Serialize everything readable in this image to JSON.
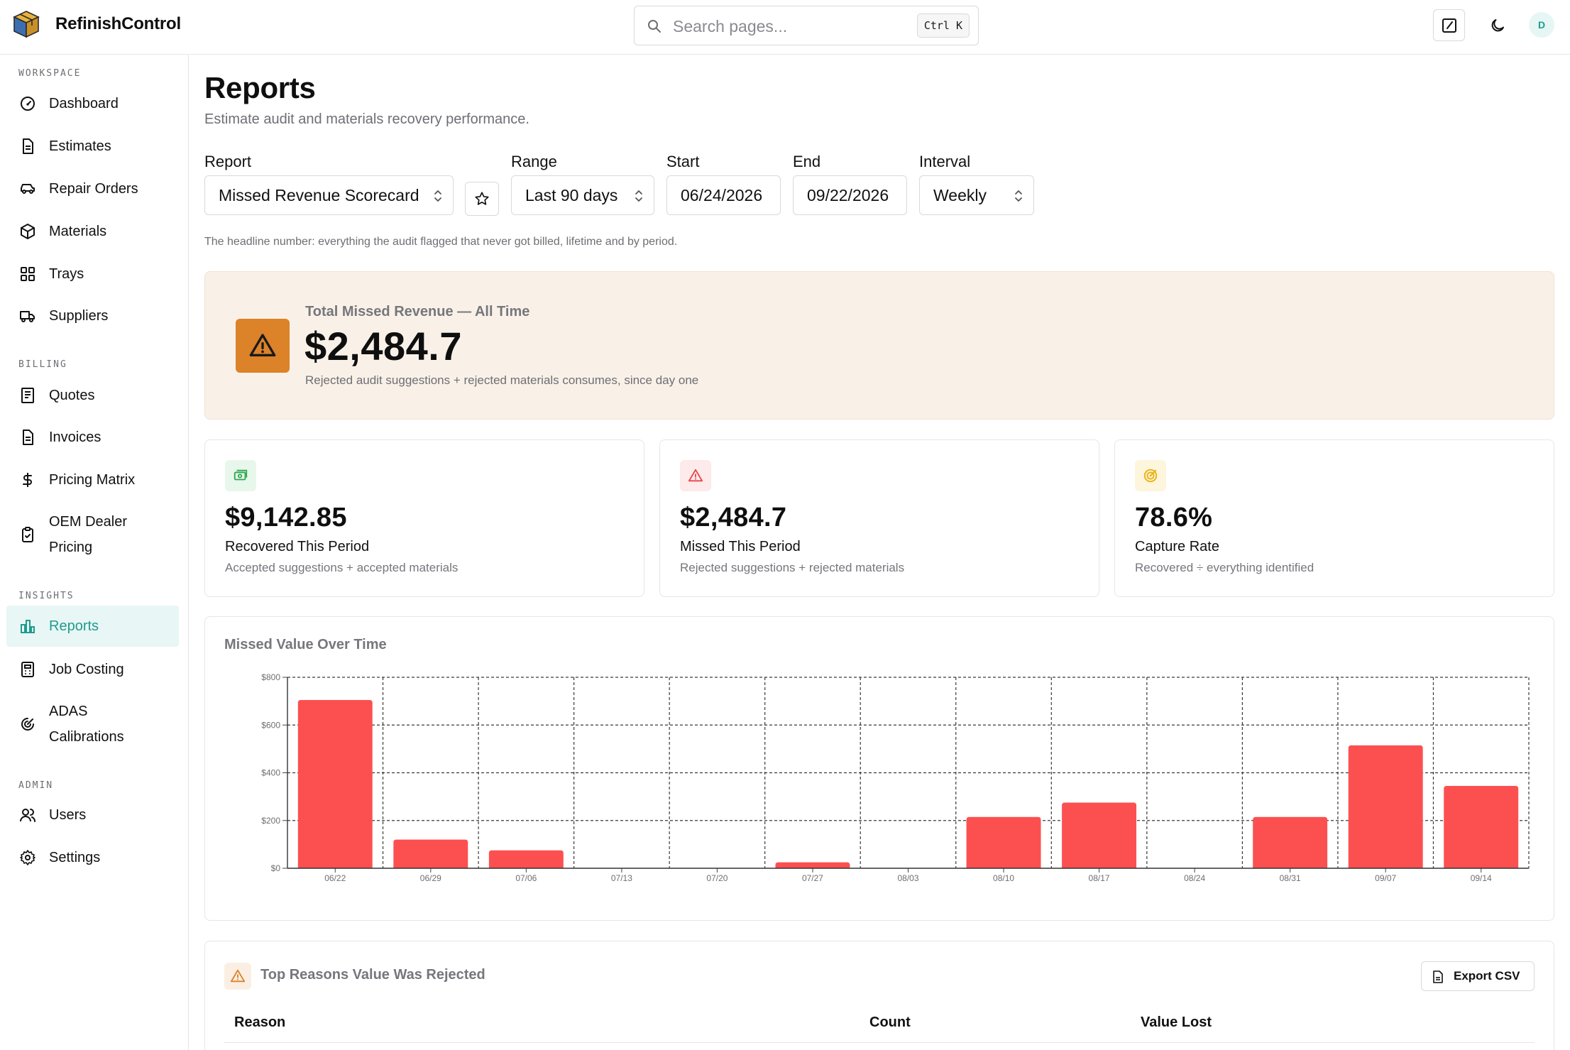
{
  "app": {
    "name": "RefinishControl",
    "user_initial": "D"
  },
  "search": {
    "placeholder": "Search pages...",
    "shortcut": "Ctrl K"
  },
  "sidebar": {
    "sections": [
      {
        "label": "WORKSPACE",
        "items": [
          {
            "label": "Dashboard",
            "icon": "gauge-icon"
          },
          {
            "label": "Estimates",
            "icon": "document-icon"
          },
          {
            "label": "Repair Orders",
            "icon": "car-icon"
          },
          {
            "label": "Materials",
            "icon": "package-icon"
          },
          {
            "label": "Trays",
            "icon": "grid-icon"
          },
          {
            "label": "Suppliers",
            "icon": "truck-icon"
          }
        ]
      },
      {
        "label": "BILLING",
        "items": [
          {
            "label": "Quotes",
            "icon": "receipt-icon"
          },
          {
            "label": "Invoices",
            "icon": "document-icon"
          },
          {
            "label": "Pricing Matrix",
            "icon": "dollar-icon"
          },
          {
            "label": "OEM Dealer Pricing",
            "icon": "clipboard-check-icon"
          }
        ]
      },
      {
        "label": "INSIGHTS",
        "items": [
          {
            "label": "Reports",
            "icon": "bar-chart-icon",
            "active": true
          },
          {
            "label": "Job Costing",
            "icon": "calculator-icon"
          },
          {
            "label": "ADAS Calibrations",
            "icon": "radar-icon"
          }
        ]
      },
      {
        "label": "ADMIN",
        "items": [
          {
            "label": "Users",
            "icon": "users-icon"
          },
          {
            "label": "Settings",
            "icon": "gear-icon"
          }
        ]
      }
    ]
  },
  "page": {
    "title": "Reports",
    "subtitle": "Estimate audit and materials recovery performance.",
    "note": "The headline number: everything the audit flagged that never got billed, lifetime and by period."
  },
  "filters": {
    "report": {
      "label": "Report",
      "value": "Missed Revenue Scorecard"
    },
    "range": {
      "label": "Range",
      "value": "Last 90 days"
    },
    "start": {
      "label": "Start",
      "value": "06/24/2026"
    },
    "end": {
      "label": "End",
      "value": "09/22/2026"
    },
    "interval": {
      "label": "Interval",
      "value": "Weekly"
    }
  },
  "hero": {
    "label": "Total Missed Revenue — All Time",
    "value": "$2,484.7",
    "description": "Rejected audit suggestions + rejected materials consumes, since day one"
  },
  "cards": [
    {
      "value": "$9,142.85",
      "label": "Recovered This Period",
      "description": "Accepted suggestions + accepted materials",
      "icon": "cash-icon",
      "color": "#2fa84f"
    },
    {
      "value": "$2,484.7",
      "label": "Missed This Period",
      "description": "Rejected suggestions + rejected materials",
      "icon": "warning-icon",
      "color": "#e5484d"
    },
    {
      "value": "78.6%",
      "label": "Capture Rate",
      "description": "Recovered ÷ everything identified",
      "icon": "target-icon",
      "color": "#e8b10c"
    }
  ],
  "chart_data": {
    "type": "bar",
    "title": "Missed Value Over Time",
    "categories": [
      "06/22",
      "06/29",
      "07/06",
      "07/13",
      "07/20",
      "07/27",
      "08/03",
      "08/10",
      "08/17",
      "08/24",
      "08/31",
      "09/07",
      "09/14"
    ],
    "values": [
      705,
      120,
      75,
      0,
      0,
      25,
      0,
      215,
      275,
      0,
      215,
      515,
      345
    ],
    "ylim": [
      0,
      800
    ],
    "yticks": [
      "$0",
      "$200",
      "$400",
      "$600",
      "$800"
    ],
    "ytick_values": [
      0,
      200,
      400,
      600,
      800
    ],
    "grid": true,
    "bar_color": "#fc5050"
  },
  "reasons_table": {
    "title": "Top Reasons Value Was Rejected",
    "export_label": "Export CSV",
    "columns": [
      "Reason",
      "Count",
      "Value Lost"
    ]
  }
}
